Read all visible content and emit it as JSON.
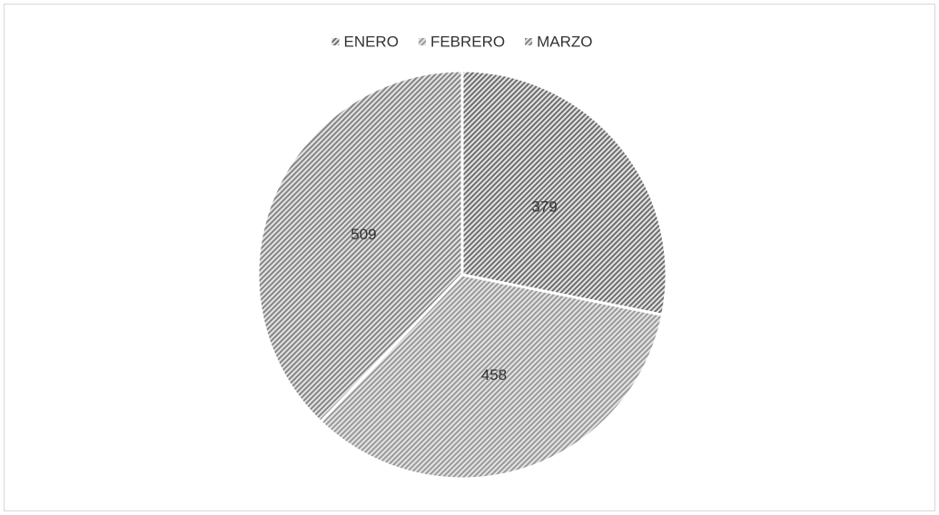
{
  "chart_data": {
    "type": "pie",
    "categories": [
      "ENERO",
      "FEBRERO",
      "MARZO"
    ],
    "values": [
      379,
      458,
      509
    ],
    "colors": [
      "#6e6e6e",
      "#9a9a9a",
      "#858585"
    ],
    "legend": "top"
  }
}
